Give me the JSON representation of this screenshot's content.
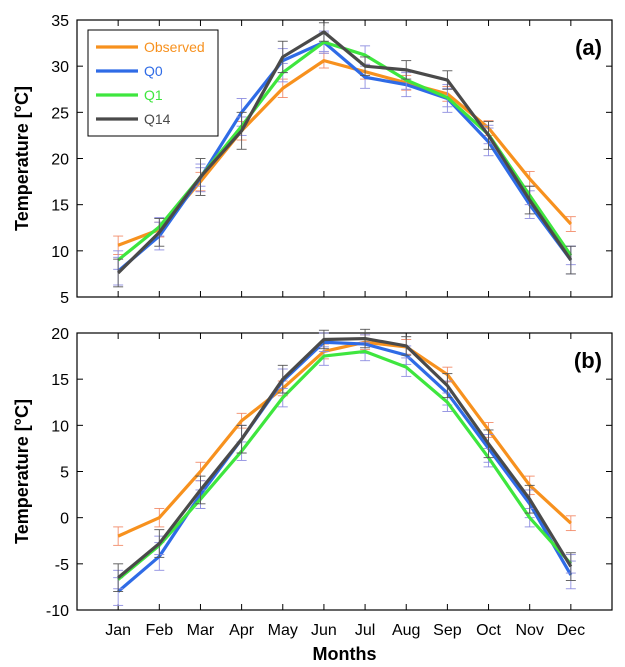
{
  "colors": {
    "observed": "#F7911E",
    "q0": "#2F6BE6",
    "q1": "#3EE63E",
    "q14": "#4A4A4A",
    "errorbar_blue": "#8E8EE0",
    "errorbar_gray": "#555555",
    "errorbar_orange": "#F28C6A"
  },
  "chart_data": [
    {
      "type": "line",
      "panel_label": "(a)",
      "ylabel": "Temperature [°C]",
      "xlabel": "",
      "categories": [
        "Jan",
        "Feb",
        "Mar",
        "Apr",
        "May",
        "Jun",
        "Jul",
        "Aug",
        "Sep",
        "Oct",
        "Nov",
        "Dec"
      ],
      "ylim": [
        5,
        35
      ],
      "yticks": [
        5,
        10,
        15,
        20,
        25,
        30,
        35
      ],
      "grid": false,
      "legend": "top-left",
      "series": [
        {
          "name": "Observed",
          "color_key": "observed",
          "values": [
            10.6,
            12.3,
            17.5,
            23.0,
            27.6,
            30.6,
            29.4,
            28.2,
            27.0,
            23.3,
            17.8,
            12.9
          ],
          "error": [
            1.0,
            0.8,
            1.0,
            1.0,
            1.0,
            0.8,
            0.8,
            0.8,
            0.8,
            0.8,
            0.8,
            0.8
          ]
        },
        {
          "name": "Q0",
          "color_key": "q0",
          "values": [
            7.8,
            11.6,
            17.9,
            25.0,
            30.6,
            32.6,
            28.8,
            28.0,
            26.5,
            21.8,
            15.0,
            9.0
          ],
          "error": [
            1.5,
            1.5,
            1.5,
            1.5,
            1.3,
            1.2,
            1.2,
            1.3,
            1.5,
            1.5,
            1.5,
            1.5
          ]
        },
        {
          "name": "Q1",
          "color_key": "q1",
          "values": [
            9.0,
            12.6,
            18.0,
            23.5,
            29.3,
            32.6,
            31.2,
            28.5,
            26.6,
            22.6,
            16.0,
            9.5
          ],
          "error": [
            1.0,
            1.0,
            1.0,
            1.0,
            1.0,
            1.0,
            1.0,
            1.0,
            1.0,
            1.0,
            1.0,
            1.0
          ]
        },
        {
          "name": "Q14",
          "color_key": "q14",
          "values": [
            7.6,
            12.0,
            18.0,
            23.0,
            31.0,
            33.7,
            30.0,
            29.6,
            28.5,
            22.5,
            15.5,
            9.0
          ],
          "error": [
            1.5,
            1.5,
            2.0,
            2.0,
            1.7,
            1.0,
            1.0,
            1.0,
            1.0,
            1.5,
            1.5,
            1.5
          ]
        }
      ]
    },
    {
      "type": "line",
      "panel_label": "(b)",
      "ylabel": "Temperature [°C]",
      "xlabel": "Months",
      "categories": [
        "Jan",
        "Feb",
        "Mar",
        "Apr",
        "May",
        "Jun",
        "Jul",
        "Aug",
        "Sep",
        "Oct",
        "Nov",
        "Dec"
      ],
      "ylim": [
        -10,
        20
      ],
      "yticks": [
        -10,
        -5,
        0,
        5,
        10,
        15,
        20
      ],
      "grid": false,
      "legend": "none",
      "series": [
        {
          "name": "Observed",
          "color_key": "observed",
          "values": [
            -2.0,
            0.0,
            5.0,
            10.5,
            14.0,
            18.0,
            19.0,
            18.5,
            15.5,
            9.5,
            3.5,
            -0.6
          ],
          "error": [
            1.0,
            1.0,
            1.0,
            0.8,
            0.8,
            0.8,
            0.8,
            0.8,
            0.8,
            0.8,
            1.0,
            0.8
          ]
        },
        {
          "name": "Q0",
          "color_key": "q0",
          "values": [
            -8.0,
            -4.2,
            2.5,
            8.5,
            14.8,
            19.0,
            18.8,
            17.6,
            13.5,
            7.5,
            1.5,
            -6.2
          ],
          "error": [
            1.5,
            1.5,
            1.5,
            1.5,
            1.3,
            1.0,
            1.0,
            1.0,
            1.3,
            1.5,
            1.5,
            1.5
          ]
        },
        {
          "name": "Q1",
          "color_key": "q1",
          "values": [
            -6.7,
            -3.0,
            2.0,
            7.2,
            13.0,
            17.5,
            18.0,
            16.3,
            12.5,
            6.5,
            0.0,
            -5.0
          ],
          "error": [
            1.0,
            1.0,
            1.0,
            1.0,
            1.0,
            1.0,
            1.0,
            1.0,
            1.0,
            1.0,
            1.0,
            1.0
          ]
        },
        {
          "name": "Q14",
          "color_key": "q14",
          "values": [
            -6.5,
            -2.8,
            3.0,
            8.5,
            15.0,
            19.3,
            19.4,
            18.6,
            14.3,
            8.0,
            2.0,
            -5.3
          ],
          "error": [
            1.5,
            1.5,
            1.5,
            1.5,
            1.5,
            1.0,
            1.0,
            1.0,
            1.3,
            1.5,
            1.5,
            1.5
          ]
        }
      ]
    }
  ]
}
